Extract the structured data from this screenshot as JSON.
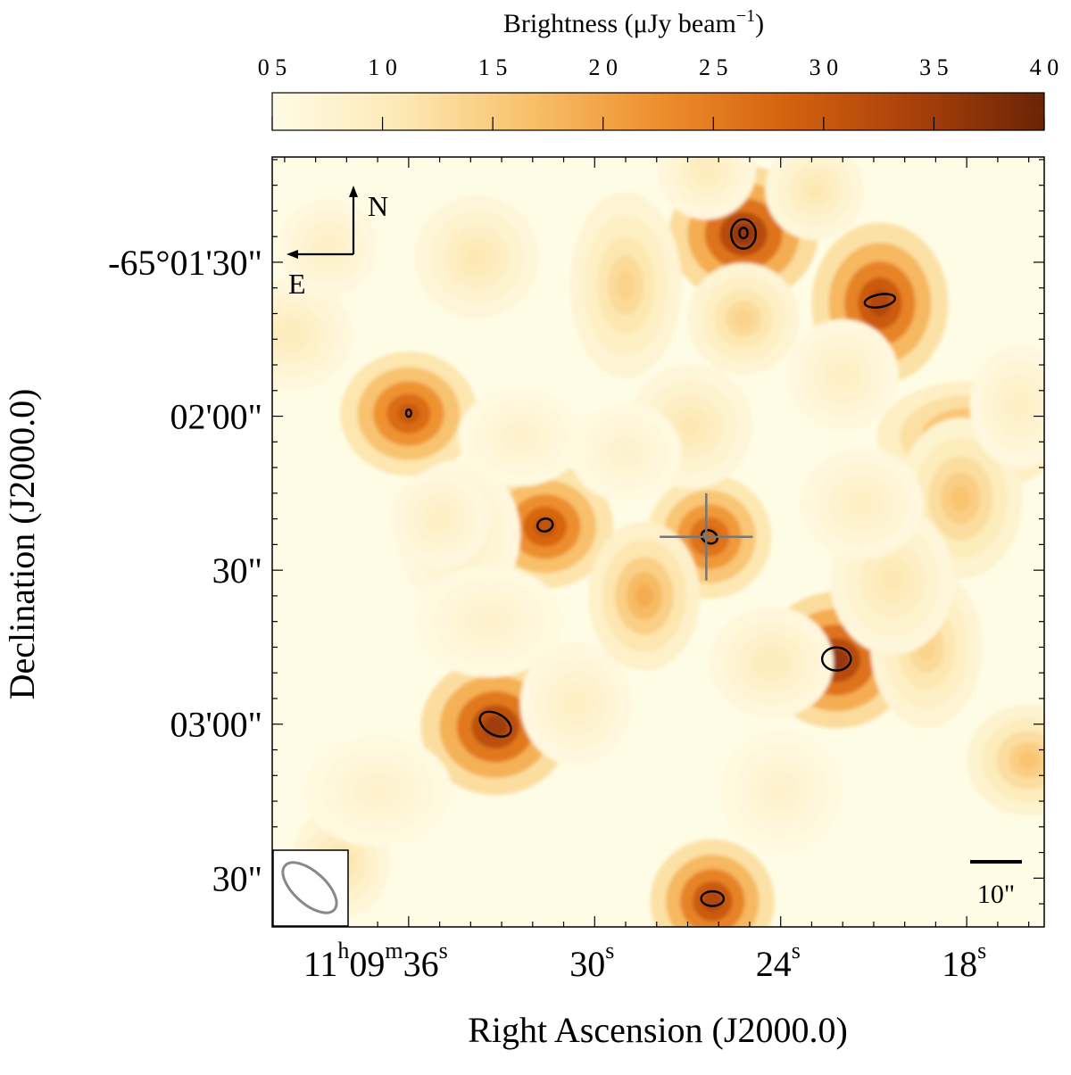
{
  "chart_data": {
    "type": "heatmap",
    "title": "",
    "xlabel": "Right Ascension (J2000.0)",
    "ylabel": "Declination (J2000.0)",
    "colorbar": {
      "label_main": "Brightness (μJy beam",
      "label_exp": "−1",
      "label_close": ")",
      "ticks": [
        "0 5",
        "1 0",
        "1 5",
        "2 0",
        "2 5",
        "3 0",
        "3 5",
        "4 0"
      ],
      "min": 5,
      "max": 40,
      "colormap": [
        "#fffbe6",
        "#fde9b5",
        "#f8c06a",
        "#ee8f2e",
        "#d4620f",
        "#a8400a",
        "#6a2406"
      ]
    },
    "x_ticks": [
      {
        "seconds": 36,
        "main": "11",
        "sup_h": "h",
        "mid": "09",
        "sup_m": "m",
        "end": "36",
        "sup_s": "s"
      },
      {
        "seconds": 30,
        "main": "30",
        "sup_s": "s"
      },
      {
        "seconds": 24,
        "main": "24",
        "sup_s": "s"
      },
      {
        "seconds": 18,
        "main": "18",
        "sup_s": "s"
      }
    ],
    "y_ticks": [
      {
        "arcsec": 90,
        "label": "-65°01'30\""
      },
      {
        "arcsec": 120,
        "label": "02'00\""
      },
      {
        "arcsec": 150,
        "label": "30\""
      },
      {
        "arcsec": 180,
        "label": "03'00\""
      },
      {
        "arcsec": 210,
        "label": "30\""
      }
    ],
    "ra_range_s": [
      40.4,
      15.5
    ],
    "dec_range_arcsec": [
      69.5,
      219.5
    ],
    "background": "#fffce6",
    "sources": [
      {
        "ra": 25.2,
        "dec": 84.5,
        "peak": 36,
        "sx": 1.2,
        "sy": 1.1
      },
      {
        "ra": 20.8,
        "dec": 98,
        "peak": 33,
        "sx": 1.1,
        "sy": 1.3
      },
      {
        "ra": 36.0,
        "dec": 119.5,
        "peak": 30,
        "sx": 1.1,
        "sy": 1.0
      },
      {
        "ra": 31.6,
        "dec": 141.5,
        "peak": 31,
        "sx": 1.1,
        "sy": 1.0
      },
      {
        "ra": 26.3,
        "dec": 143.5,
        "peak": 29,
        "sx": 1.0,
        "sy": 1.0
      },
      {
        "ra": 22.2,
        "dec": 167.5,
        "peak": 36,
        "sx": 1.2,
        "sy": 1.1
      },
      {
        "ra": 33.2,
        "dec": 180.5,
        "peak": 35,
        "sx": 1.2,
        "sy": 1.1
      },
      {
        "ra": 26.2,
        "dec": 214.5,
        "peak": 33,
        "sx": 1.0,
        "sy": 1.0
      },
      {
        "ra": 17.9,
        "dec": 124.0,
        "peak": 21,
        "sx": 1.5,
        "sy": 0.9
      },
      {
        "ra": 18.2,
        "dec": 136.0,
        "peak": 16,
        "sx": 1.0,
        "sy": 1.3
      },
      {
        "ra": 28.4,
        "dec": 155.0,
        "peak": 19,
        "sx": 0.9,
        "sy": 1.2
      },
      {
        "ra": 29.0,
        "dec": 94.5,
        "peak": 14,
        "sx": 0.9,
        "sy": 1.5
      },
      {
        "ra": 25.2,
        "dec": 101.0,
        "peak": 14,
        "sx": 0.9,
        "sy": 0.9
      },
      {
        "ra": 19.3,
        "dec": 165.0,
        "peak": 14,
        "sx": 0.9,
        "sy": 1.3
      },
      {
        "ra": 16.0,
        "dec": 187.0,
        "peak": 16,
        "sx": 1.0,
        "sy": 0.9
      },
      {
        "ra": 26.9,
        "dec": 122.0,
        "peak": 11,
        "sx": 1.0,
        "sy": 1.0
      },
      {
        "ra": 38.2,
        "dec": 207.0,
        "peak": 12,
        "sx": 0.8,
        "sy": 0.9
      },
      {
        "ra": 34.4,
        "dec": 143.0,
        "peak": 9,
        "sx": 1.0,
        "sy": 1.2
      },
      {
        "ra": 33.4,
        "dec": 160.0,
        "peak": 8,
        "sx": 1.2,
        "sy": 0.9
      },
      {
        "ra": 30.6,
        "dec": 176.0,
        "peak": 9,
        "sx": 0.9,
        "sy": 1.0
      },
      {
        "ra": 39.8,
        "dec": 104.0,
        "peak": 10,
        "sx": 1.0,
        "sy": 0.9
      },
      {
        "ra": 35.0,
        "dec": 140.0,
        "peak": 9,
        "sx": 0.8,
        "sy": 0.8
      },
      {
        "ra": 33.8,
        "dec": 89.0,
        "peak": 11,
        "sx": 1.0,
        "sy": 1.0
      },
      {
        "ra": 38.6,
        "dec": 87.0,
        "peak": 9,
        "sx": 0.8,
        "sy": 0.8
      },
      {
        "ra": 26.4,
        "dec": 72.0,
        "peak": 10,
        "sx": 0.8,
        "sy": 0.8
      },
      {
        "ra": 22.9,
        "dec": 76.0,
        "peak": 11,
        "sx": 0.8,
        "sy": 0.8
      },
      {
        "ra": 20.4,
        "dec": 152.0,
        "peak": 11,
        "sx": 1.0,
        "sy": 1.2
      },
      {
        "ra": 24.3,
        "dec": 168.0,
        "peak": 10,
        "sx": 1.0,
        "sy": 0.9
      },
      {
        "ra": 22.0,
        "dec": 112.0,
        "peak": 9,
        "sx": 0.9,
        "sy": 0.9
      },
      {
        "ra": 32.4,
        "dec": 124.0,
        "peak": 8,
        "sx": 1.0,
        "sy": 0.8
      },
      {
        "ra": 29.0,
        "dec": 127.0,
        "peak": 8,
        "sx": 0.9,
        "sy": 0.8
      },
      {
        "ra": 37.0,
        "dec": 193.0,
        "peak": 8,
        "sx": 1.2,
        "sy": 0.9
      },
      {
        "ra": 24.0,
        "dec": 193.0,
        "peak": 8,
        "sx": 1.0,
        "sy": 1.0
      },
      {
        "ra": 21.4,
        "dec": 137.0,
        "peak": 9,
        "sx": 1.0,
        "sy": 0.9
      },
      {
        "ra": 16.3,
        "dec": 118.0,
        "peak": 9,
        "sx": 0.8,
        "sy": 1.0
      }
    ],
    "contours": [
      {
        "ra": 25.2,
        "dec": 84.5,
        "rx": 1.4,
        "ry": 2.4,
        "rot": 0
      },
      {
        "ra": 25.2,
        "dec": 84.3,
        "rx": 0.5,
        "ry": 0.8,
        "rot": 0
      },
      {
        "ra": 20.8,
        "dec": 97.5,
        "rx": 0.6,
        "ry": 3.0,
        "rot": -10
      },
      {
        "ra": 36.0,
        "dec": 119.4,
        "rx": 0.35,
        "ry": 0.5,
        "rot": 0
      },
      {
        "ra": 31.6,
        "dec": 141.2,
        "rx": 0.6,
        "ry": 1.5,
        "rot": -15
      },
      {
        "ra": 26.3,
        "dec": 143.5,
        "rx": 0.6,
        "ry": 1.6,
        "rot": 25
      },
      {
        "ra": 22.2,
        "dec": 167.3,
        "rx": 1.1,
        "ry": 2.8,
        "rot": 0
      },
      {
        "ra": 33.2,
        "dec": 180.0,
        "rx": 1.0,
        "ry": 3.3,
        "rot": 30
      },
      {
        "ra": 26.2,
        "dec": 214.0,
        "rx": 0.7,
        "ry": 2.2,
        "rot": 0
      }
    ],
    "target_marker": {
      "ra": 26.4,
      "dec": 143.5,
      "arm_ra": 1.5,
      "arm_dec": 8.5
    },
    "compass": {
      "north": "N",
      "east": "E"
    },
    "scalebar_label": "10\"",
    "scalebar_arcsec": 10
  }
}
